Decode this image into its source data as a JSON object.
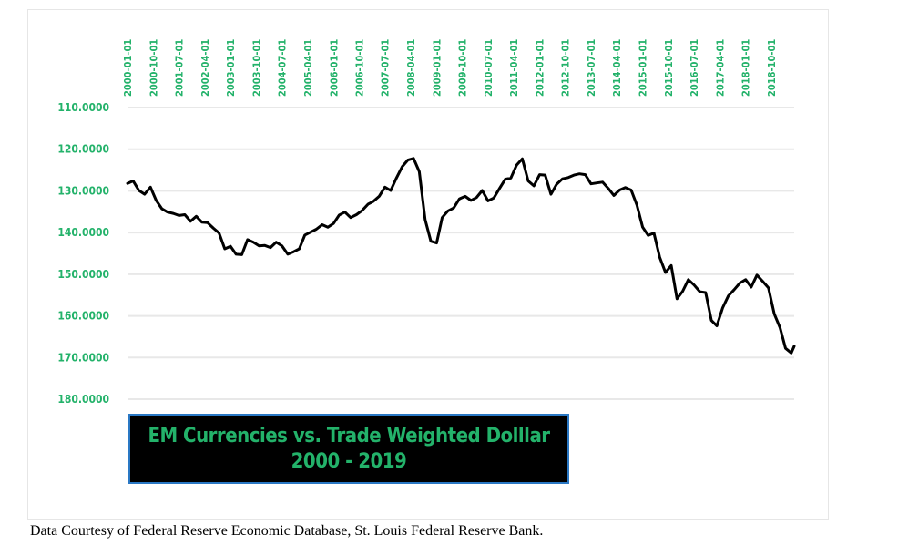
{
  "chart_data": {
    "type": "line",
    "title": "EM Currencies vs. Trade Weighted Dolllar",
    "subtitle": "2000 - 2019",
    "y_inverted": true,
    "ylim": [
      110,
      180
    ],
    "y_ticks": [
      110,
      120,
      130,
      140,
      150,
      160,
      170,
      180
    ],
    "y_tick_labels": [
      "110.0000",
      "120.0000",
      "130.0000",
      "140.0000",
      "150.0000",
      "160.0000",
      "170.0000",
      "180.0000"
    ],
    "x_range": [
      "2000-01-01",
      "2019-06-01"
    ],
    "x_tick_labels": [
      "2000-01-01",
      "2000-10-01",
      "2001-07-01",
      "2002-04-01",
      "2003-01-01",
      "2003-10-01",
      "2004-07-01",
      "2005-04-01",
      "2006-01-01",
      "2006-10-01",
      "2007-07-01",
      "2008-04-01",
      "2009-01-01",
      "2009-10-01",
      "2010-07-01",
      "2011-04-01",
      "2012-01-01",
      "2012-10-01",
      "2013-07-01",
      "2014-04-01",
      "2015-01-01",
      "2015-10-01",
      "2016-07-01",
      "2017-04-01",
      "2018-01-01",
      "2018-10-01"
    ],
    "grid": true,
    "series": [
      {
        "color": "#000000",
        "x": [
          "2000-01-01",
          "2000-03-01",
          "2000-05-01",
          "2000-07-01",
          "2000-09-01",
          "2000-11-01",
          "2001-01-01",
          "2001-03-01",
          "2001-05-01",
          "2001-07-01",
          "2001-09-01",
          "2001-11-01",
          "2002-01-01",
          "2002-03-01",
          "2002-05-01",
          "2002-07-01",
          "2002-09-01",
          "2002-11-01",
          "2003-01-01",
          "2003-03-01",
          "2003-05-01",
          "2003-07-01",
          "2003-09-01",
          "2003-11-01",
          "2004-01-01",
          "2004-03-01",
          "2004-05-01",
          "2004-07-01",
          "2004-09-01",
          "2004-11-01",
          "2005-01-01",
          "2005-03-01",
          "2005-05-01",
          "2005-07-01",
          "2005-09-01",
          "2005-11-01",
          "2006-01-01",
          "2006-03-01",
          "2006-05-01",
          "2006-07-01",
          "2006-09-01",
          "2006-11-01",
          "2007-01-01",
          "2007-03-01",
          "2007-05-01",
          "2007-07-01",
          "2007-09-01",
          "2007-11-01",
          "2008-01-01",
          "2008-03-01",
          "2008-05-01",
          "2008-07-01",
          "2008-09-01",
          "2008-11-01",
          "2009-01-01",
          "2009-03-01",
          "2009-05-01",
          "2009-07-01",
          "2009-09-01",
          "2009-11-01",
          "2010-01-01",
          "2010-03-01",
          "2010-05-01",
          "2010-07-01",
          "2010-09-01",
          "2010-11-01",
          "2011-01-01",
          "2011-03-01",
          "2011-05-01",
          "2011-07-01",
          "2011-09-01",
          "2011-11-01",
          "2012-01-01",
          "2012-03-01",
          "2012-05-01",
          "2012-07-01",
          "2012-09-01",
          "2012-11-01",
          "2013-01-01",
          "2013-03-01",
          "2013-05-01",
          "2013-07-01",
          "2013-09-01",
          "2013-11-01",
          "2014-01-01",
          "2014-03-01",
          "2014-05-01",
          "2014-07-01",
          "2014-09-01",
          "2014-11-01",
          "2015-01-01",
          "2015-03-01",
          "2015-05-01",
          "2015-07-01",
          "2015-09-01",
          "2015-11-01",
          "2016-01-01",
          "2016-03-01",
          "2016-05-01",
          "2016-07-01",
          "2016-09-01",
          "2016-11-01",
          "2017-01-01",
          "2017-03-01",
          "2017-05-01",
          "2017-07-01",
          "2017-09-01",
          "2017-11-01",
          "2018-01-01",
          "2018-03-01",
          "2018-05-01",
          "2018-07-01",
          "2018-09-01",
          "2018-11-01",
          "2019-01-01",
          "2019-03-01",
          "2019-05-01",
          "2019-06-01"
        ],
        "values": [
          128.2,
          127.6,
          129.9,
          130.8,
          129.1,
          132.3,
          134.3,
          135.1,
          135.4,
          135.9,
          135.7,
          137.3,
          136.1,
          137.5,
          137.6,
          138.9,
          140.1,
          143.9,
          143.3,
          145.2,
          145.3,
          141.7,
          142.3,
          143.2,
          143.1,
          143.6,
          142.3,
          143.2,
          145.2,
          144.6,
          143.9,
          140.6,
          139.9,
          139.2,
          138.1,
          138.7,
          137.8,
          135.8,
          135.1,
          136.4,
          135.7,
          134.7,
          133.2,
          132.5,
          131.3,
          129.1,
          129.9,
          126.9,
          124.2,
          122.6,
          122.2,
          125.4,
          136.9,
          142.1,
          142.5,
          136.4,
          134.8,
          134.1,
          131.9,
          131.3,
          132.3,
          131.6,
          129.9,
          132.4,
          131.7,
          129.4,
          127.2,
          126.9,
          123.8,
          122.3,
          127.6,
          128.8,
          126.1,
          126.2,
          130.8,
          128.4,
          127.1,
          126.8,
          126.2,
          125.9,
          126.1,
          128.3,
          128.1,
          127.9,
          129.4,
          131.1,
          129.8,
          129.2,
          129.8,
          133.4,
          138.7,
          140.7,
          140.1,
          145.9,
          149.6,
          147.9,
          155.9,
          154.1,
          151.3,
          152.6,
          154.2,
          154.4,
          161.1,
          162.4,
          158.1,
          155.2,
          153.7,
          152.1,
          151.3,
          153.1,
          150.2,
          151.7,
          153.3,
          159.5,
          162.8,
          167.8,
          168.9,
          167.3
        ]
      }
    ]
  },
  "source_note": "Data Courtesy of Federal Reserve Economic Database, St. Louis Federal Reserve Bank."
}
